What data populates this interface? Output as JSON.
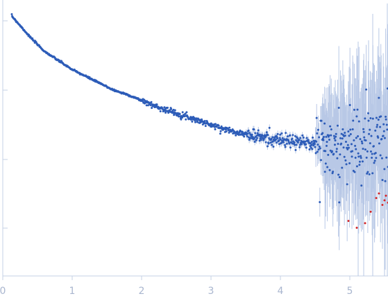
{
  "chart_data": {
    "type": "scatter",
    "title": "",
    "xlabel": "",
    "ylabel": "",
    "x_ticks": [
      "0",
      "1",
      "2",
      "3",
      "4",
      "5"
    ],
    "x_range": [
      0,
      5.55
    ],
    "y_scale": "log",
    "y_ticks_labeled": false,
    "grid": false,
    "colors": {
      "axis": "#c5d0e6",
      "tick_label": "#a9b6cf",
      "points": "#2d5cb8",
      "excluded_points": "#b3c1e0",
      "outlier_points": "#d62728",
      "error_bars": "#b8c8e6"
    },
    "series": [
      {
        "role": "measured",
        "x": [
          0.0,
          0.2,
          0.4,
          0.6,
          0.8,
          1.0,
          1.2,
          1.4,
          1.6,
          1.8,
          2.0,
          2.2,
          2.4,
          2.6,
          2.8,
          3.0,
          3.2,
          3.4,
          3.6,
          3.8,
          4.0,
          4.2,
          4.4,
          4.6,
          4.8,
          5.0,
          5.2,
          5.4,
          5.55
        ],
        "y_rel": [
          1.0,
          0.93,
          0.86,
          0.8,
          0.76,
          0.72,
          0.69,
          0.66,
          0.63,
          0.61,
          0.585,
          0.56,
          0.54,
          0.52,
          0.5,
          0.478,
          0.46,
          0.445,
          0.43,
          0.42,
          0.412,
          0.405,
          0.4,
          0.397,
          0.395,
          0.394,
          0.393,
          0.393,
          0.393
        ]
      },
      {
        "role": "outliers",
        "x": [
          4.98,
          5.1,
          5.22,
          5.3,
          5.38,
          5.42,
          5.47,
          5.5,
          5.52,
          5.55
        ],
        "y_rel": [
          0.18,
          0.15,
          0.17,
          0.22,
          0.28,
          0.3,
          0.25,
          0.27,
          0.29,
          0.26
        ]
      }
    ]
  }
}
